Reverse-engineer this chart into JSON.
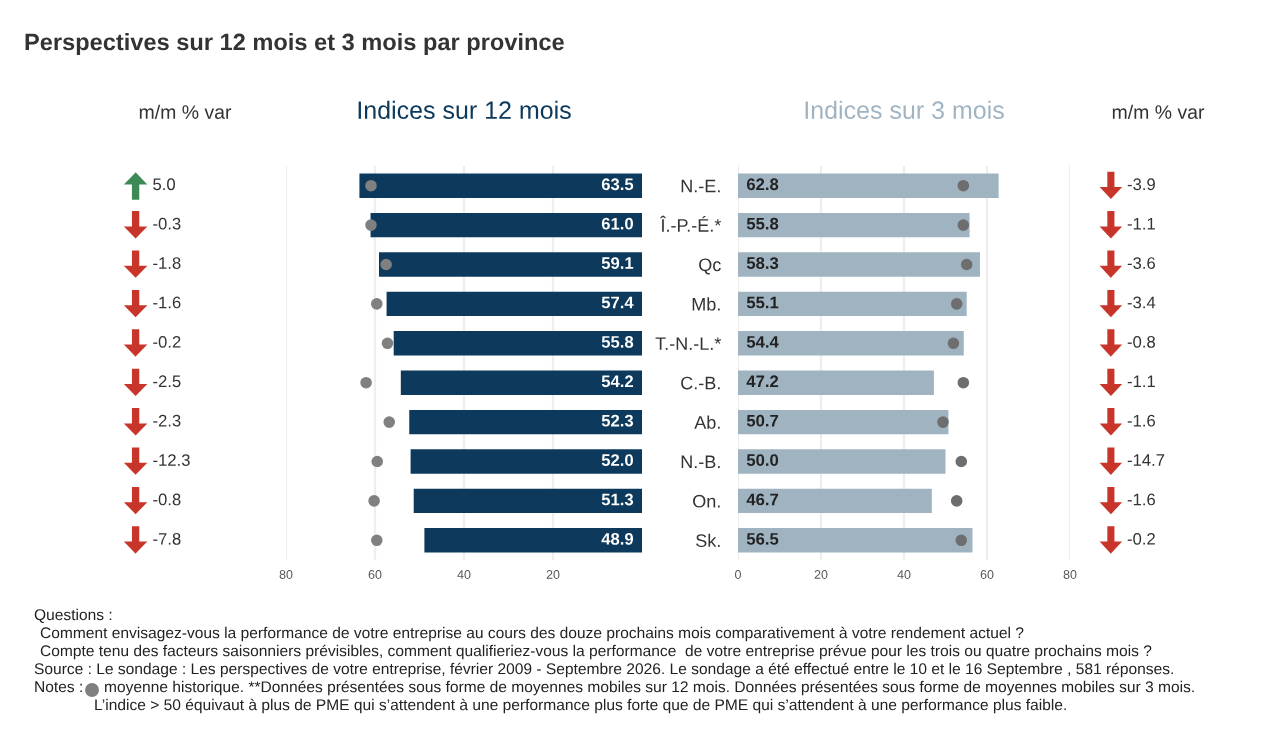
{
  "chart_data": [
    {
      "type": "other",
      "title": "Perspectives sur 12 mois et 3 mois par province",
      "subtitle": "m/m % var",
      "annotations": [
        "5.0",
        "-0.3",
        "-1.8",
        "-1.6",
        "-0.2",
        "-2.5",
        "-2.3",
        "-12.3",
        "-0.8",
        "-7.8"
      ]
    },
    {
      "type": "bar",
      "orientation": "horizontal",
      "title": "Indices sur 12 mois",
      "categories": [
        null,
        null,
        null,
        null,
        null,
        null,
        null,
        null,
        null,
        null
      ],
      "series": [
        {
          "color": "#0d3a5c",
          "values": [
            63.5,
            61.0,
            59.1,
            57.4,
            55.8,
            54.2,
            52.3,
            52.0,
            51.3,
            48.9
          ],
          "value_labels": [
            "63.5",
            "61.0",
            "59.1",
            "57.4",
            "55.8",
            "54.2",
            "52.3",
            "52.0",
            "51.3",
            "48.9"
          ]
        },
        {
          "type": "scatter",
          "color": "#808080",
          "values": [
            60.9,
            60.9,
            57.5,
            59.6,
            57.2,
            62.0,
            56.8,
            59.5,
            60.2,
            59.6
          ]
        }
      ],
      "xlim": [
        80,
        0
      ],
      "xticks": [
        80,
        60,
        40,
        20
      ],
      "grid": "x",
      "marker": "circle",
      "annotations": [
        "Questions :",
        "Comment envisagez-vous la performance de votre entreprise au cours des douze prochains mois comparativement à votre rendement actuel ?",
        "Compte tenu des facteurs saisonniers prévisibles, comment qualifieriez-vous la performance  de votre entreprise prévue pour les trois ou quatre prochains mois ?",
        "Source : Le sondage : Les perspectives de votre entreprise, février 2009 - Septembre 2026. Le sondage a été effectué entre le 10 et le 16 Septembre , 581 réponses.",
        "Notes :",
        "moyenne historique. **Données présentées sous forme de moyennes mobiles sur 12 mois. Données présentées sous forme de moyennes mobiles sur 3 mois.",
        "L’indice > 50 équivaut à plus de PME qui s’attendent à une performance plus forte que de PME qui s’attendent à une performance plus faible."
      ]
    },
    {
      "type": "bar",
      "orientation": "horizontal",
      "title": "Indices sur 3 mois",
      "categories": [
        "N.-E.",
        "Î.-P.-É.*",
        "Qc",
        "Mb.",
        "T.-N.-L.*",
        "C.-B.",
        "Ab.",
        "N.-B.",
        "On.",
        "Sk."
      ],
      "series": [
        {
          "color": "#9fb3c1",
          "values": [
            62.8,
            55.8,
            58.3,
            55.1,
            54.4,
            47.2,
            50.7,
            50.0,
            46.7,
            56.5
          ],
          "value_labels": [
            "62.8",
            "55.8",
            "58.3",
            "55.1",
            "54.4",
            "47.2",
            "50.7",
            "50.0",
            "46.7",
            "56.5"
          ]
        },
        {
          "type": "scatter",
          "color": "#6e6e6e",
          "values": [
            54.3,
            54.3,
            55.1,
            52.7,
            51.9,
            54.3,
            49.4,
            53.8,
            52.7,
            53.8
          ]
        }
      ],
      "xlim": [
        0,
        80
      ],
      "xticks": [
        0,
        20,
        40,
        60,
        80
      ],
      "grid": "x",
      "marker": "circle"
    },
    {
      "type": "other",
      "subtitle": "m/m % var",
      "annotations": [
        "-3.9",
        "-1.1",
        "-3.6",
        "-3.4",
        "-0.8",
        "-1.1",
        "-1.6",
        "-14.7",
        "-1.6",
        "-0.2"
      ]
    }
  ]
}
